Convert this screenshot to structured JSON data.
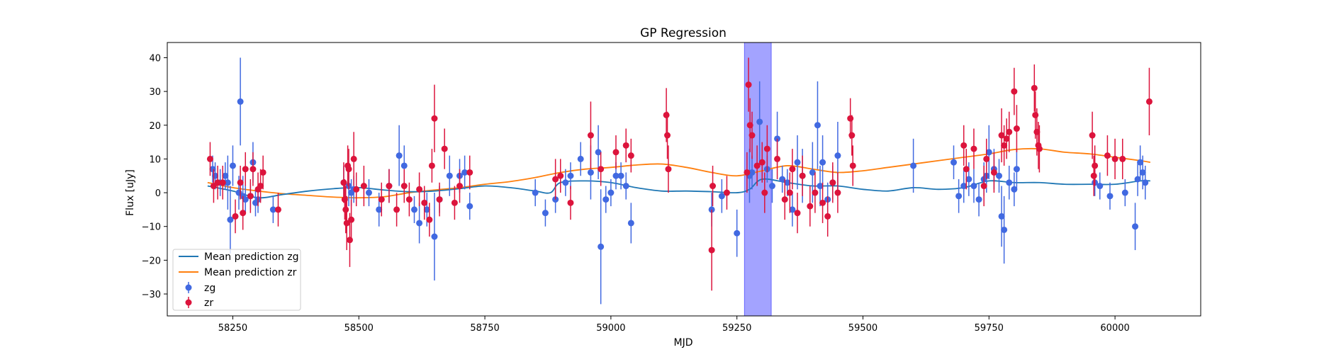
{
  "chart_data": {
    "type": "scatter",
    "title": "GP Regression",
    "xlabel": "MJD",
    "ylabel": "Flux [uJy]",
    "xlim": [
      58120,
      60170
    ],
    "ylim": [
      -36.5,
      44.5
    ],
    "xticks": [
      58250,
      58500,
      58750,
      59000,
      59250,
      59500,
      59750,
      60000
    ],
    "yticks": [
      -30,
      -20,
      -10,
      0,
      10,
      20,
      30,
      40
    ],
    "grid": false,
    "legend_position": "lower-left",
    "highlight_band": {
      "x": [
        59265,
        59318
      ],
      "color": "#6666ff"
    },
    "colors": {
      "zg": "#4169e1",
      "zr": "#dc143c",
      "mean_zg": "#1f77b4",
      "mean_zr": "#ff7f0e"
    },
    "legend": {
      "mean_zg": "Mean prediction zg",
      "mean_zr": "Mean prediction zr",
      "zg": "zg",
      "zr": "zr"
    },
    "mean_prediction_zg": {
      "x": [
        58200,
        58250,
        58300,
        58350,
        58400,
        58450,
        58500,
        58550,
        58600,
        58650,
        58700,
        58750,
        58800,
        58850,
        58880,
        58900,
        58950,
        59000,
        59050,
        59100,
        59150,
        59200,
        59250,
        59275,
        59300,
        59350,
        59400,
        59450,
        59500,
        59550,
        59600,
        59650,
        59700,
        59750,
        59800,
        59850,
        59900,
        59950,
        60000,
        60050,
        60070
      ],
      "y": [
        2.0,
        0.5,
        -1.5,
        -0.5,
        0.5,
        1.2,
        1.5,
        0.8,
        0.3,
        0.5,
        1.2,
        2.0,
        1.5,
        0.5,
        0.0,
        3.0,
        3.5,
        3.0,
        1.5,
        0.5,
        0.5,
        0.3,
        0.0,
        1.0,
        4.0,
        3.0,
        2.0,
        2.0,
        1.0,
        0.5,
        1.5,
        1.0,
        1.5,
        3.5,
        3.0,
        3.0,
        2.5,
        2.5,
        2.5,
        3.5,
        3.5
      ]
    },
    "mean_prediction_zr": {
      "x": [
        58200,
        58250,
        58300,
        58350,
        58400,
        58450,
        58500,
        58550,
        58600,
        58650,
        58700,
        58750,
        58800,
        58850,
        58900,
        58950,
        59000,
        59050,
        59100,
        59150,
        59200,
        59250,
        59300,
        59350,
        59400,
        59450,
        59500,
        59550,
        59600,
        59650,
        59700,
        59750,
        59800,
        59850,
        59900,
        59950,
        60000,
        60050,
        60070
      ],
      "y": [
        3.0,
        1.5,
        0.5,
        -0.3,
        -0.8,
        -1.3,
        -1.5,
        -1.2,
        0.0,
        0.8,
        1.5,
        2.5,
        3.3,
        4.5,
        6.0,
        7.0,
        7.5,
        8.2,
        8.5,
        7.5,
        6.0,
        5.0,
        6.5,
        8.0,
        7.0,
        6.0,
        6.5,
        7.5,
        8.5,
        9.5,
        10.5,
        11.5,
        12.8,
        13.0,
        12.0,
        11.5,
        10.5,
        9.5,
        9.0
      ]
    },
    "series": [
      {
        "name": "zg",
        "x": [
          58210,
          58215,
          58225,
          58235,
          58240,
          58245,
          58250,
          58262,
          58265,
          58270,
          58275,
          58285,
          58290,
          58295,
          58300,
          58330,
          58470,
          58480,
          58485,
          58490,
          58520,
          58540,
          58560,
          58580,
          58590,
          58610,
          58620,
          58635,
          58650,
          58660,
          58680,
          58700,
          58710,
          58720,
          58850,
          58870,
          58890,
          58910,
          58920,
          58940,
          58960,
          58975,
          58980,
          58990,
          59000,
          59010,
          59020,
          59030,
          59040,
          59200,
          59220,
          59250,
          59275,
          59280,
          59295,
          59310,
          59320,
          59330,
          59340,
          59350,
          59360,
          59370,
          59380,
          59400,
          59410,
          59415,
          59420,
          59430,
          59440,
          59450,
          59600,
          59680,
          59690,
          59700,
          59710,
          59720,
          59730,
          59740,
          59745,
          59750,
          59760,
          59770,
          59775,
          59780,
          59790,
          59800,
          59805,
          59960,
          59970,
          59990,
          60020,
          60040,
          60045,
          60050,
          60055,
          60060
        ],
        "y": [
          7,
          5,
          3,
          5,
          3,
          -8,
          8,
          0,
          27,
          -1,
          -2,
          -1,
          9,
          -3,
          -2,
          -5,
          3,
          2,
          0,
          1,
          0,
          -5,
          2,
          11,
          8,
          -5,
          -9,
          -5,
          -13,
          -2,
          5,
          5,
          6,
          -4,
          0,
          -6,
          -2,
          3,
          5,
          10,
          6,
          12,
          -16,
          -2,
          0,
          5,
          5,
          2,
          -9,
          -5,
          -1,
          -12,
          5,
          6,
          21,
          7,
          2,
          16,
          4,
          3,
          -5,
          9,
          5,
          6,
          20,
          2,
          9,
          -2,
          3,
          11,
          8,
          9,
          -1,
          2,
          4,
          2,
          -2,
          4,
          5,
          12,
          7,
          5,
          -7,
          -11,
          3,
          1,
          7,
          3,
          2,
          -1,
          0,
          -10,
          4,
          9,
          6,
          3
        ],
        "err": [
          4,
          4,
          4,
          4,
          8,
          10,
          6,
          5,
          13,
          6,
          4,
          4,
          6,
          4,
          4,
          4,
          5,
          6,
          4,
          4,
          4,
          5,
          5,
          9,
          6,
          4,
          6,
          5,
          13,
          4,
          6,
          5,
          5,
          4,
          4,
          4,
          4,
          4,
          4,
          5,
          8,
          8,
          17,
          4,
          4,
          4,
          4,
          4,
          6,
          5,
          5,
          7,
          8,
          5,
          12,
          4,
          5,
          8,
          4,
          4,
          5,
          8,
          8,
          9,
          13,
          6,
          8,
          5,
          5,
          10,
          8,
          5,
          5,
          5,
          5,
          5,
          5,
          5,
          5,
          8,
          6,
          5,
          9,
          10,
          5,
          5,
          6,
          4,
          4,
          4,
          4,
          7,
          5,
          5,
          5,
          5
        ]
      },
      {
        "name": "zr",
        "x": [
          58205,
          58212,
          58220,
          58230,
          58255,
          58265,
          58270,
          58275,
          58285,
          58290,
          58300,
          58305,
          58310,
          58340,
          58470,
          58472,
          58474,
          58476,
          58478,
          58480,
          58482,
          58485,
          58490,
          58495,
          58510,
          58545,
          58560,
          58575,
          58590,
          58600,
          58620,
          58630,
          58640,
          58645,
          58650,
          58660,
          58670,
          58690,
          58700,
          58720,
          58890,
          58900,
          58920,
          58960,
          58980,
          59010,
          59030,
          59040,
          59110,
          59112,
          59114,
          59200,
          59202,
          59230,
          59270,
          59273,
          59276,
          59280,
          59290,
          59300,
          59305,
          59310,
          59330,
          59345,
          59355,
          59360,
          59370,
          59380,
          59395,
          59405,
          59420,
          59430,
          59440,
          59450,
          59475,
          59478,
          59480,
          59700,
          59705,
          59720,
          59740,
          59745,
          59760,
          59775,
          59780,
          59785,
          59790,
          59800,
          59805,
          59840,
          59842,
          59845,
          59848,
          59850,
          59955,
          59958,
          59960,
          59985,
          60000,
          60015,
          60068
        ],
        "y": [
          10,
          2,
          3,
          3,
          -7,
          3,
          -6,
          7,
          -1,
          7,
          1,
          2,
          6,
          -5,
          3,
          -2,
          -5,
          -9,
          8,
          7,
          -14,
          -8,
          10,
          1,
          2,
          -2,
          2,
          -5,
          2,
          -2,
          1,
          -3,
          -8,
          8,
          22,
          -2,
          13,
          -3,
          2,
          6,
          4,
          5,
          -3,
          17,
          7,
          12,
          14,
          11,
          23,
          17,
          7,
          -17,
          2,
          0,
          6,
          32,
          20,
          17,
          8,
          9,
          0,
          13,
          10,
          -2,
          0,
          7,
          -6,
          5,
          -4,
          0,
          -3,
          -7,
          3,
          0,
          22,
          17,
          8,
          14,
          7,
          13,
          2,
          10,
          6,
          17,
          14,
          16,
          18,
          30,
          19,
          31,
          23,
          18,
          14,
          13,
          17,
          5,
          8,
          11,
          10,
          10,
          27
        ],
        "err": [
          5,
          5,
          5,
          5,
          5,
          5,
          5,
          5,
          5,
          5,
          5,
          5,
          5,
          5,
          6,
          6,
          7,
          8,
          6,
          6,
          8,
          6,
          8,
          5,
          6,
          5,
          5,
          5,
          5,
          5,
          5,
          5,
          5,
          5,
          10,
          5,
          6,
          5,
          5,
          5,
          6,
          5,
          5,
          10,
          5,
          5,
          5,
          5,
          8,
          7,
          7,
          12,
          6,
          5,
          6,
          8,
          8,
          7,
          6,
          6,
          6,
          7,
          6,
          6,
          6,
          6,
          6,
          6,
          6,
          6,
          6,
          6,
          6,
          6,
          6,
          6,
          6,
          6,
          6,
          6,
          6,
          6,
          6,
          8,
          6,
          6,
          6,
          7,
          7,
          7,
          7,
          7,
          7,
          7,
          7,
          6,
          6,
          6,
          6,
          6,
          10
        ]
      }
    ]
  }
}
